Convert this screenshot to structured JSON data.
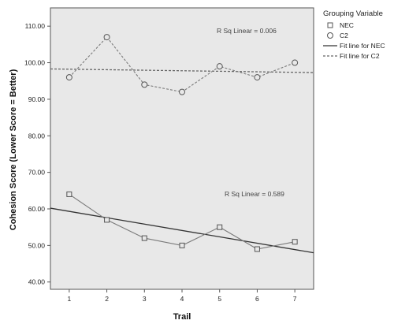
{
  "chart_data": {
    "type": "line",
    "title": "",
    "xlabel": "Trail",
    "ylabel": "Cohesion Score (Lower Score = Better)",
    "x": [
      1,
      2,
      3,
      4,
      5,
      6,
      7
    ],
    "xticks": [
      "1",
      "2",
      "3",
      "4",
      "5",
      "6",
      "7"
    ],
    "xlim": [
      0.5,
      7.5
    ],
    "ylim": [
      38,
      115
    ],
    "yticks": [
      "40.00",
      "50.00",
      "60.00",
      "70.00",
      "80.00",
      "90.00",
      "100.00",
      "110.00"
    ],
    "ytick_values": [
      40,
      50,
      60,
      70,
      80,
      90,
      100,
      110
    ],
    "grid": false,
    "plot_background": "#e8e8e8",
    "legend": {
      "title": "Grouping Variable",
      "placement": "right",
      "entries": [
        "NEC",
        "C2",
        "Fit line for NEC",
        "Fit line for C2"
      ]
    },
    "series": [
      {
        "name": "NEC",
        "marker": "square",
        "line_style": "solid",
        "color": "#7a7a7a",
        "values": [
          64,
          57,
          52,
          50,
          55,
          49,
          51
        ]
      },
      {
        "name": "C2",
        "marker": "circle",
        "line_style": "dashed",
        "color": "#7a7a7a",
        "values": [
          96,
          107,
          94,
          92,
          99,
          96,
          100
        ]
      }
    ],
    "fit_lines": [
      {
        "name": "Fit line for NEC",
        "line_style": "solid",
        "color": "#333333",
        "x_range": [
          0.5,
          7.5
        ],
        "y_range": [
          60.2,
          48
        ],
        "annotation": "R Sq Linear = 0.589"
      },
      {
        "name": "Fit line for C2",
        "line_style": "dashed",
        "color": "#666666",
        "x_range": [
          0.5,
          7.5
        ],
        "y_range": [
          98.3,
          97.3
        ],
        "annotation": "R Sq Linear = 0.006"
      }
    ]
  }
}
